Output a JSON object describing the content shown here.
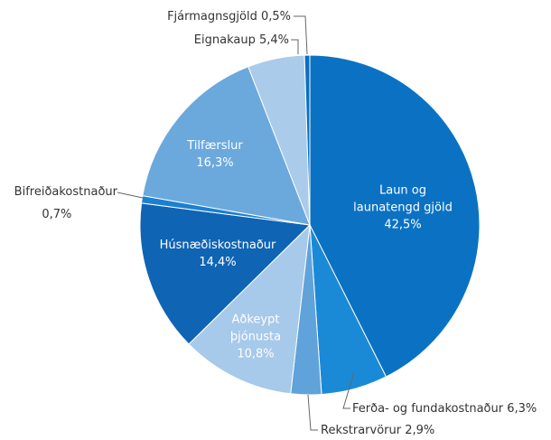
{
  "chart_data": {
    "type": "pie",
    "categories": [
      "Laun og launatengd gjöld",
      "Ferða- og fundakostnaður",
      "Rekstrarvörur",
      "Aðkeypt þjónusta",
      "Húsnæðiskostnaður",
      "Bifreiðakostnaður",
      "Tilfærslur",
      "Eignakaup",
      "Fjármagnsgjöld"
    ],
    "values": [
      42.5,
      6.3,
      2.9,
      10.8,
      14.4,
      0.7,
      16.3,
      5.4,
      0.5
    ],
    "value_labels": [
      "42,5%",
      "6,3%",
      "2,9%",
      "10,8%",
      "14,4%",
      "0,7%",
      "16,3%",
      "5,4%",
      "0,5%"
    ],
    "colors": [
      "#0b72c3",
      "#1b8ad6",
      "#5fa3da",
      "#a7c9ea",
      "#0f64b4",
      "#1a80d1",
      "#6ba9dd",
      "#abcbea",
      "#0a6fc0"
    ]
  }
}
